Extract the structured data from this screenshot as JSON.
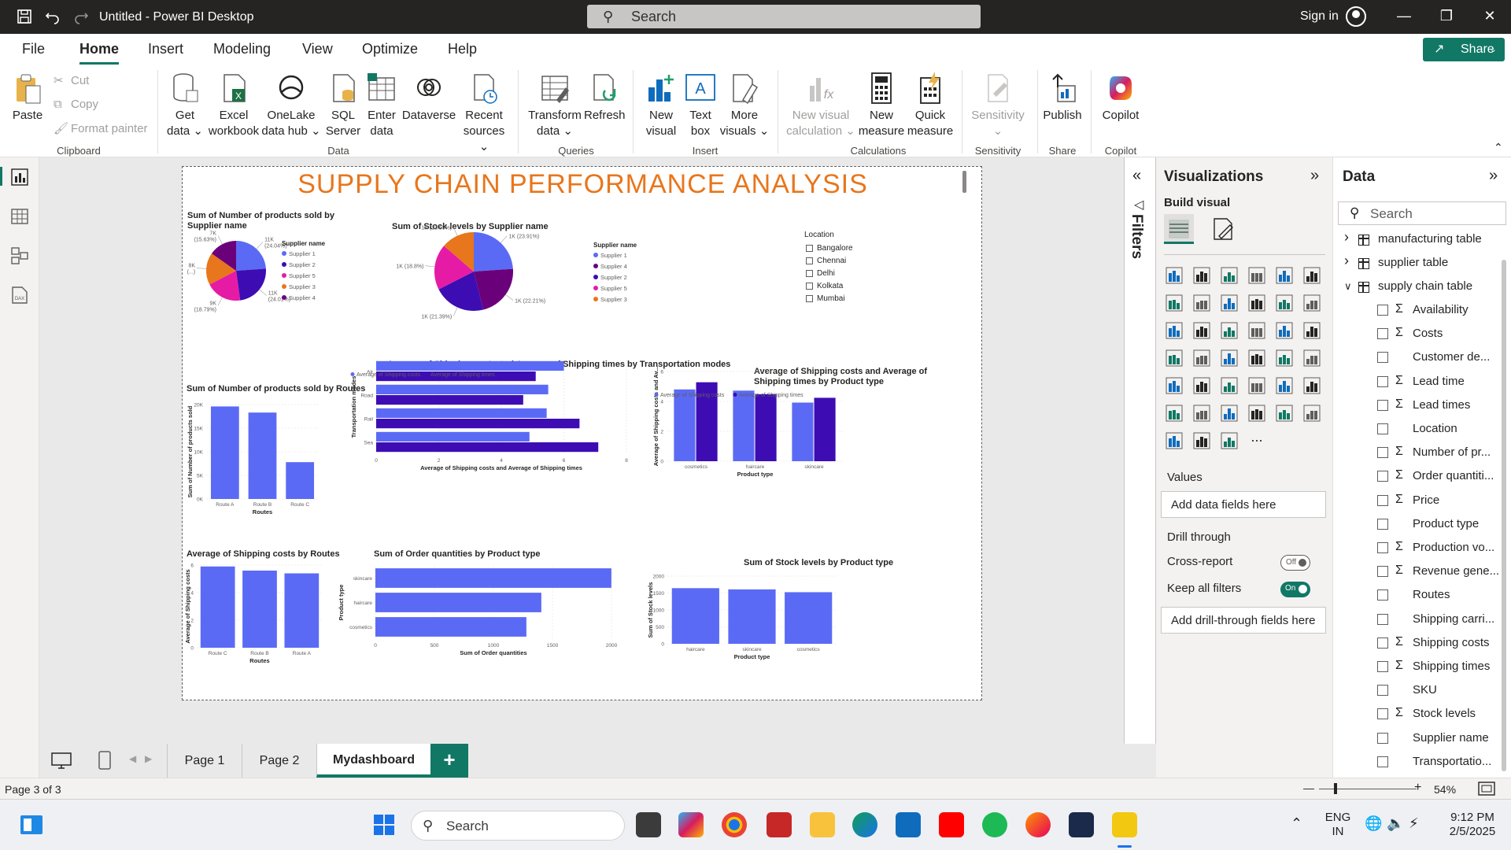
{
  "window": {
    "title": "Untitled - Power BI Desktop",
    "search_placeholder": "Search",
    "sign_in": "Sign in"
  },
  "menu": {
    "items": [
      "File",
      "Home",
      "Insert",
      "Modeling",
      "View",
      "Optimize",
      "Help"
    ],
    "active": "Home",
    "share": "Share"
  },
  "ribbon": {
    "clipboard": {
      "paste": "Paste",
      "cut": "Cut",
      "copy": "Copy",
      "format_painter": "Format painter",
      "label": "Clipboard"
    },
    "data": {
      "get_data": [
        "Get",
        "data"
      ],
      "excel": [
        "Excel",
        "workbook"
      ],
      "onelake": [
        "OneLake",
        "data hub"
      ],
      "sql": [
        "SQL",
        "Server"
      ],
      "enter": [
        "Enter",
        "data"
      ],
      "dataverse": "Dataverse",
      "recent": [
        "Recent",
        "sources"
      ],
      "label": "Data"
    },
    "queries": {
      "transform": [
        "Transform",
        "data"
      ],
      "refresh": "Refresh",
      "label": "Queries"
    },
    "insert": {
      "new_visual": [
        "New",
        "visual"
      ],
      "text_box": [
        "Text",
        "box"
      ],
      "more_visuals": [
        "More",
        "visuals"
      ],
      "label": "Insert"
    },
    "calculations": {
      "new_visual_calc": [
        "New visual",
        "calculation"
      ],
      "new_measure": [
        "New",
        "measure"
      ],
      "quick_measure": [
        "Quick",
        "measure"
      ],
      "label": "Calculations"
    },
    "sensitivity": {
      "btn": "Sensitivity",
      "label": "Sensitivity"
    },
    "share": {
      "publish": "Publish",
      "label": "Share"
    },
    "copilot": {
      "btn": "Copilot",
      "label": "Copilot"
    }
  },
  "filters_label": "Filters",
  "visualizations": {
    "title": "Visualizations",
    "build_visual": "Build visual",
    "values_label": "Values",
    "values_well": "Add data fields here",
    "drill_through": "Drill through",
    "cross_report": "Cross-report",
    "cross_report_state": "Off",
    "keep_all_filters": "Keep all filters",
    "keep_all_filters_state": "On",
    "drill_well": "Add drill-through fields here",
    "more": "..."
  },
  "data_pane": {
    "title": "Data",
    "search_placeholder": "Search",
    "tables": [
      "manufacturing table",
      "supplier table",
      "supply chain table"
    ],
    "fields": [
      {
        "name": "Availability",
        "sigma": true
      },
      {
        "name": "Costs",
        "sigma": true
      },
      {
        "name": "Customer de...",
        "sigma": false
      },
      {
        "name": "Lead time",
        "sigma": true
      },
      {
        "name": "Lead times",
        "sigma": true
      },
      {
        "name": "Location",
        "sigma": false
      },
      {
        "name": "Number of pr...",
        "sigma": true
      },
      {
        "name": "Order quantiti...",
        "sigma": true
      },
      {
        "name": "Price",
        "sigma": true
      },
      {
        "name": "Product type",
        "sigma": false
      },
      {
        "name": "Production vo...",
        "sigma": true
      },
      {
        "name": "Revenue gene...",
        "sigma": true
      },
      {
        "name": "Routes",
        "sigma": false
      },
      {
        "name": "Shipping carri...",
        "sigma": false
      },
      {
        "name": "Shipping costs",
        "sigma": true
      },
      {
        "name": "Shipping times",
        "sigma": true
      },
      {
        "name": "SKU",
        "sigma": false
      },
      {
        "name": "Stock levels",
        "sigma": true
      },
      {
        "name": "Supplier name",
        "sigma": false
      },
      {
        "name": "Transportatio...",
        "sigma": false
      }
    ]
  },
  "pages": {
    "tabs": [
      "Page 1",
      "Page 2",
      "Mydashboard"
    ],
    "active": "Mydashboard",
    "add": "+"
  },
  "status": {
    "page_info": "Page 3 of 3",
    "zoom": "54%"
  },
  "taskbar": {
    "search": "Search",
    "lang": [
      "ENG",
      "IN"
    ],
    "time": "9:12 PM",
    "date": "2/5/2025"
  },
  "dashboard": {
    "title": "SUPPLY CHAIN PERFORMANCE ANALYSIS",
    "slicer": {
      "title": "Location",
      "options": [
        "Bangalore",
        "Chennai",
        "Delhi",
        "Kolkata",
        "Mumbai"
      ]
    }
  },
  "colors": {
    "accent": "#117865",
    "title_orange": "#e8761c",
    "bar_blue": "#5b6af5",
    "bar_purple": "#3d0db3",
    "supplier1": "#5b6af5",
    "supplier2": "#3d0db3",
    "supplier3": "#e8761c",
    "supplier4": "#6b007b",
    "supplier5": "#e61ba5"
  },
  "chart_data": [
    {
      "id": "pie-products-by-supplier",
      "type": "pie",
      "title": "Sum of Number of products sold by Supplier name",
      "legend_title": "Supplier name",
      "legend": [
        "Supplier 1",
        "Supplier 2",
        "Supplier 5",
        "Supplier 3",
        "Supplier 4"
      ],
      "slices": [
        {
          "name": "Supplier 1",
          "value": 11,
          "label": "11K (24.04%)",
          "color": "#5b6af5"
        },
        {
          "name": "Supplier 2",
          "value": 11,
          "label": "11K (24.01%)",
          "color": "#3d0db3"
        },
        {
          "name": "Supplier 5",
          "value": 9,
          "label": "9K (18.79%)",
          "color": "#e61ba5"
        },
        {
          "name": "Supplier 3",
          "value": 8,
          "label": "8K (...)",
          "color": "#e8761c"
        },
        {
          "name": "Supplier 4",
          "value": 7,
          "label": "7K (15.63%)",
          "color": "#6b007b"
        }
      ]
    },
    {
      "id": "pie-stock-by-supplier",
      "type": "pie",
      "title": "Sum of Stock levels by Supplier name",
      "legend_title": "Supplier name",
      "legend": [
        "Supplier 1",
        "Supplier 4",
        "Supplier 2",
        "Supplier 5",
        "Supplier 3"
      ],
      "slices": [
        {
          "name": "Supplier 1",
          "value": 23.91,
          "label": "1K (23.91%)",
          "color": "#5b6af5"
        },
        {
          "name": "Supplier 4",
          "value": 22.21,
          "label": "1K (22.21%)",
          "color": "#6b007b"
        },
        {
          "name": "Supplier 2",
          "value": 21.39,
          "label": "1K (21.39%)",
          "color": "#3d0db3"
        },
        {
          "name": "Supplier 5",
          "value": 18.8,
          "label": "1K (18.8%)",
          "color": "#e61ba5"
        },
        {
          "name": "Supplier 3",
          "value": 13.69,
          "label": "1K (13.69%)",
          "color": "#e8761c"
        }
      ]
    },
    {
      "id": "bar-products-by-routes",
      "type": "bar",
      "title": "Sum of Number of products sold by Routes",
      "categories": [
        "Route A",
        "Route B",
        "Route C"
      ],
      "values": [
        19600,
        18300,
        7800
      ],
      "xlabel": "Routes",
      "ylabel": "Sum of Number of products sold",
      "yticks": [
        "0K",
        "5K",
        "10K",
        "15K",
        "20K"
      ],
      "ylim": [
        0,
        20000
      ]
    },
    {
      "id": "hbar-shipping-by-transport",
      "type": "bar",
      "orientation": "horizontal",
      "title": "Average of Shipping costs and Average of Shipping times by Transportation modes",
      "categories": [
        "Air",
        "Road",
        "Rail",
        "Sea"
      ],
      "series": [
        {
          "name": "Average of Shipping costs",
          "values": [
            6.0,
            5.5,
            5.45,
            4.9
          ]
        },
        {
          "name": "Average of Shipping times",
          "values": [
            5.1,
            4.7,
            6.5,
            7.1
          ]
        }
      ],
      "xlabel": "Average of Shipping costs and Average of Shipping times",
      "ylabel": "Transportation modes",
      "xticks": [
        "0",
        "2",
        "4",
        "6",
        "8"
      ],
      "xlim": [
        0,
        8
      ]
    },
    {
      "id": "col-shipping-by-product",
      "type": "bar",
      "title": "Average of Shipping costs and Average of Shipping times by Product type",
      "categories": [
        "cosmetics",
        "haircare",
        "skincare"
      ],
      "series": [
        {
          "name": "Average of Shipping costs",
          "values": [
            6.0,
            5.9,
            4.9
          ]
        },
        {
          "name": "Average of Shipping times",
          "values": [
            6.6,
            5.6,
            5.3
          ]
        }
      ],
      "xlabel": "Product type",
      "ylabel": "Average of Shipping costs and Av...",
      "yticks": [
        "0",
        "2",
        "4",
        "6"
      ],
      "ylim": [
        0,
        7.5
      ]
    },
    {
      "id": "bar-shipping-costs-by-routes",
      "type": "bar",
      "title": "Average of Shipping costs by Routes",
      "categories": [
        "Route C",
        "Route B",
        "Route A"
      ],
      "values": [
        5.9,
        5.6,
        5.4
      ],
      "xlabel": "Routes",
      "ylabel": "Average of Shipping costs",
      "yticks": [
        "0",
        "2",
        "4",
        "6"
      ],
      "ylim": [
        0,
        6
      ]
    },
    {
      "id": "hbar-order-qty-by-product",
      "type": "bar",
      "orientation": "horizontal",
      "title": "Sum of Order quantities by Product type",
      "categories": [
        "skincare",
        "haircare",
        "cosmetics"
      ],
      "values": [
        2099,
        1476,
        1343
      ],
      "xlabel": "Sum of Order quantities",
      "ylabel": "Product type",
      "xticks": [
        "0",
        "500",
        "1000",
        "1500",
        "2000"
      ],
      "xlim": [
        0,
        2100
      ]
    },
    {
      "id": "col-stock-by-product",
      "type": "bar",
      "title": "Sum of Stock levels by Product type",
      "categories": [
        "haircare",
        "skincare",
        "cosmetics"
      ],
      "values": [
        1644,
        1608,
        1525
      ],
      "xlabel": "Product type",
      "ylabel": "Sum of Stock levels",
      "yticks": [
        "0",
        "500",
        "1000",
        "1500",
        "2000"
      ],
      "ylim": [
        0,
        2000
      ]
    }
  ]
}
